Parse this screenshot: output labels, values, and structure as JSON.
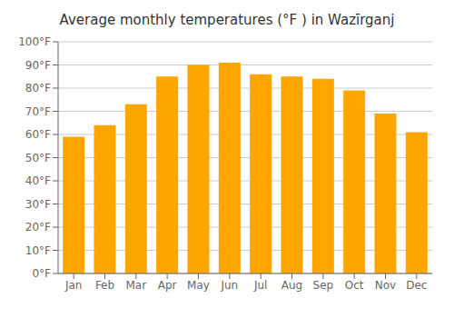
{
  "chart_data": {
    "type": "bar",
    "title": "Average monthly temperatures (°F ) in Wazīrganj",
    "categories": [
      "Jan",
      "Feb",
      "Mar",
      "Apr",
      "May",
      "Jun",
      "Jul",
      "Aug",
      "Sep",
      "Oct",
      "Nov",
      "Dec"
    ],
    "values": [
      59,
      64,
      73,
      85,
      90,
      91,
      86,
      85,
      84,
      79,
      69,
      61
    ],
    "color": "#FFA500",
    "ylim": [
      0,
      100
    ],
    "yticks": [
      {
        "value": 0,
        "label": "0°F"
      },
      {
        "value": 10,
        "label": "10°F"
      },
      {
        "value": 20,
        "label": "20°F"
      },
      {
        "value": 30,
        "label": "30°F"
      },
      {
        "value": 40,
        "label": "40°F"
      },
      {
        "value": 50,
        "label": "50°F"
      },
      {
        "value": 60,
        "label": "60°F"
      },
      {
        "value": 70,
        "label": "70°F"
      },
      {
        "value": 80,
        "label": "80°F"
      },
      {
        "value": 90,
        "label": "90°F"
      },
      {
        "value": 100,
        "label": "100°F"
      }
    ],
    "grid": true
  }
}
